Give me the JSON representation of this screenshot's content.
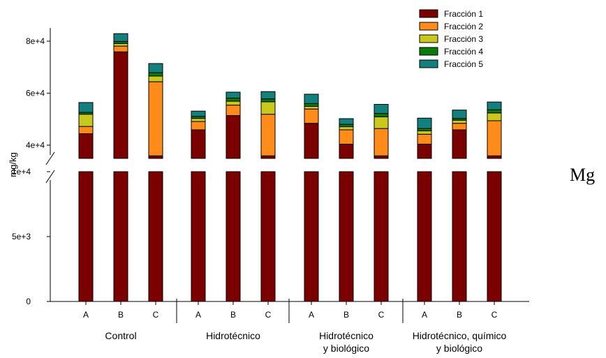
{
  "chart_data": {
    "type": "bar",
    "stacked": true,
    "ylabel": "mg/kg",
    "side_label": "Mg",
    "axis_break": true,
    "lower_ylim": [
      0,
      10000
    ],
    "upper_ylim": [
      34000,
      84000
    ],
    "lower_ticks": [
      {
        "value": 0,
        "label": "0"
      },
      {
        "value": 5000,
        "label": "5e+3"
      },
      {
        "value": 10000,
        "label": "1e+4"
      }
    ],
    "upper_ticks": [
      {
        "value": 40000,
        "label": "4e+4"
      },
      {
        "value": 60000,
        "label": "6e+4"
      },
      {
        "value": 80000,
        "label": "8e+4"
      }
    ],
    "groups": [
      {
        "label": [
          "Control"
        ],
        "categories": [
          "A",
          "B",
          "C"
        ]
      },
      {
        "label": [
          "Hidrotécnico"
        ],
        "categories": [
          "A",
          "B",
          "C"
        ]
      },
      {
        "label": [
          "Hidrotécnico",
          "y biológico"
        ],
        "categories": [
          "A",
          "B",
          "C"
        ]
      },
      {
        "label": [
          "Hidrotécnico, químico",
          "y biológico"
        ],
        "categories": [
          "A",
          "B",
          "C"
        ]
      }
    ],
    "series": [
      {
        "name": "Fracción 1",
        "color": "#7b0000",
        "values": [
          43500,
          75000,
          35000,
          45000,
          50500,
          35000,
          47500,
          39500,
          35000,
          39500,
          45000,
          35000
        ]
      },
      {
        "name": "Fracción 2",
        "color": "#ff8c1a",
        "values": [
          2800,
          2200,
          28500,
          3200,
          4000,
          16000,
          5500,
          5500,
          10500,
          3800,
          2500,
          13500
        ]
      },
      {
        "name": "Fracción 3",
        "color": "#c8c81e",
        "values": [
          4700,
          1000,
          2200,
          1200,
          1500,
          4800,
          1000,
          1200,
          4500,
          1300,
          1200,
          3000
        ]
      },
      {
        "name": "Fracción 4",
        "color": "#0a7a0a",
        "values": [
          700,
          800,
          1300,
          800,
          1200,
          1100,
          1100,
          900,
          1300,
          900,
          700,
          1200
        ]
      },
      {
        "name": "Fracción 5",
        "color": "#14807e",
        "values": [
          3800,
          3000,
          3500,
          2000,
          2300,
          2800,
          3600,
          2200,
          3500,
          4000,
          3200,
          3000
        ]
      }
    ]
  }
}
